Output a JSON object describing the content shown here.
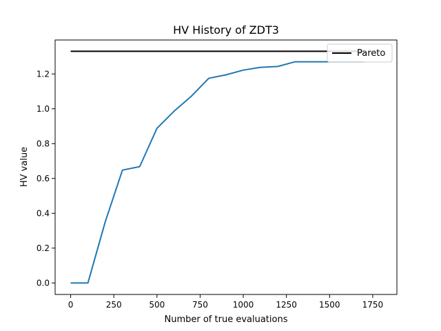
{
  "chart_data": {
    "type": "line",
    "title": "HV History of ZDT3",
    "xlabel": "Number of true evaluations",
    "ylabel": "HV value",
    "xlim": [
      -90,
      1890
    ],
    "ylim": [
      -0.066,
      1.395
    ],
    "xticks": [
      0,
      250,
      500,
      750,
      1000,
      1250,
      1500,
      1750
    ],
    "yticks": [
      0.0,
      0.2,
      0.4,
      0.6,
      0.8,
      1.0,
      1.2
    ],
    "xtick_labels": [
      "0",
      "250",
      "500",
      "750",
      "1000",
      "1250",
      "1500",
      "1750"
    ],
    "ytick_labels": [
      "0.0",
      "0.2",
      "0.4",
      "0.6",
      "0.8",
      "1.0",
      "1.2"
    ],
    "grid": false,
    "legend": {
      "position": "upper right",
      "entries": [
        "Pareto"
      ]
    },
    "series": [
      {
        "color": "#1f77b4",
        "x": [
          0,
          100,
          200,
          300,
          400,
          500,
          600,
          700,
          800,
          900,
          1000,
          1100,
          1200,
          1300,
          1400,
          1500,
          1600,
          1700
        ],
        "y": [
          0.0,
          0.0,
          0.35,
          0.648,
          0.668,
          0.888,
          0.987,
          1.073,
          1.175,
          1.195,
          1.222,
          1.238,
          1.243,
          1.27,
          1.27,
          1.27,
          1.27,
          1.27
        ]
      },
      {
        "name": "Pareto",
        "color": "#000000",
        "x": [
          0,
          1700
        ],
        "y": [
          1.33,
          1.33
        ]
      }
    ]
  }
}
